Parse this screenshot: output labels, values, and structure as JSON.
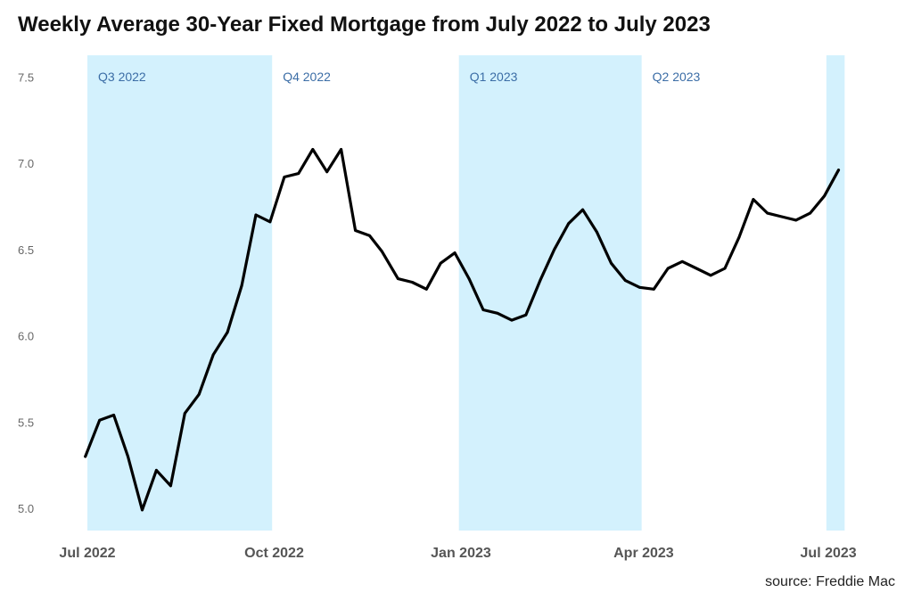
{
  "chart_data": {
    "type": "line",
    "title": "Weekly Average 30-Year Fixed Mortgage from July 2022 to July 2023",
    "source": "source: Freddie Mac",
    "xlabel": "",
    "ylabel": "",
    "ylim": [
      4.9,
      7.6
    ],
    "y_ticks": [
      "5.0",
      "5.5",
      "6.0",
      "6.5",
      "7.0",
      "7.5"
    ],
    "x_range": [
      "2022-07-01",
      "2023-07-15"
    ],
    "x_ticks": [
      {
        "label": "Jul 2022",
        "date": "2022-07-01"
      },
      {
        "label": "Oct 2022",
        "date": "2022-10-01"
      },
      {
        "label": "Jan 2023",
        "date": "2023-01-01"
      },
      {
        "label": "Apr 2023",
        "date": "2023-04-01"
      },
      {
        "label": "Jul 2023",
        "date": "2023-07-01"
      }
    ],
    "quarters": [
      {
        "label": "Q3 2022",
        "start": "2022-07-01",
        "end": "2022-09-30",
        "shaded": true
      },
      {
        "label": "Q4 2022",
        "start": "2022-09-30",
        "end": "2022-12-31",
        "shaded": false
      },
      {
        "label": "Q1 2023",
        "start": "2022-12-31",
        "end": "2023-03-31",
        "shaded": true
      },
      {
        "label": "Q2 2023",
        "start": "2023-03-31",
        "end": "2023-06-30",
        "shaded": false
      },
      {
        "label": "",
        "start": "2023-06-30",
        "end": "2023-07-09",
        "shaded": true
      }
    ],
    "grid": false,
    "series": [
      {
        "color": "#000000",
        "x": [
          "2022-06-30",
          "2022-07-07",
          "2022-07-14",
          "2022-07-21",
          "2022-07-28",
          "2022-08-04",
          "2022-08-11",
          "2022-08-18",
          "2022-08-25",
          "2022-09-01",
          "2022-09-08",
          "2022-09-15",
          "2022-09-22",
          "2022-09-29",
          "2022-10-06",
          "2022-10-13",
          "2022-10-20",
          "2022-10-27",
          "2022-11-03",
          "2022-11-10",
          "2022-11-17",
          "2022-11-23",
          "2022-12-01",
          "2022-12-08",
          "2022-12-15",
          "2022-12-22",
          "2022-12-29",
          "2023-01-05",
          "2023-01-12",
          "2023-01-19",
          "2023-01-26",
          "2023-02-02",
          "2023-02-09",
          "2023-02-16",
          "2023-02-23",
          "2023-03-02",
          "2023-03-09",
          "2023-03-16",
          "2023-03-23",
          "2023-03-30",
          "2023-04-06",
          "2023-04-13",
          "2023-04-20",
          "2023-04-27",
          "2023-05-04",
          "2023-05-11",
          "2023-05-18",
          "2023-05-25",
          "2023-06-01",
          "2023-06-08",
          "2023-06-15",
          "2023-06-22",
          "2023-06-29",
          "2023-07-06"
        ],
        "values": [
          5.3,
          5.51,
          5.54,
          5.3,
          4.99,
          5.22,
          5.13,
          5.55,
          5.66,
          5.89,
          6.02,
          6.29,
          6.7,
          6.66,
          6.92,
          6.94,
          7.08,
          6.95,
          7.08,
          6.61,
          6.58,
          6.49,
          6.33,
          6.31,
          6.27,
          6.42,
          6.48,
          6.33,
          6.15,
          6.13,
          6.09,
          6.12,
          6.32,
          6.5,
          6.65,
          6.73,
          6.6,
          6.42,
          6.32,
          6.28,
          6.27,
          6.39,
          6.43,
          6.39,
          6.35,
          6.39,
          6.57,
          6.79,
          6.71,
          6.69,
          6.67,
          6.71,
          6.81,
          6.96
        ]
      }
    ]
  },
  "colors": {
    "shade": "#d3f1fd",
    "line": "#000000",
    "quarter_label": "#3b6da6"
  }
}
